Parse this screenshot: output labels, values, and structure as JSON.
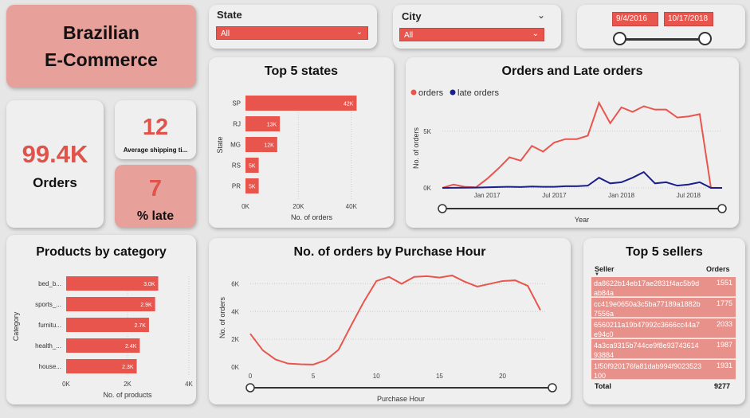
{
  "title": {
    "line1": "Brazilian",
    "line2": "E-Commerce"
  },
  "kpis": {
    "orders_value": "99.4K",
    "orders_label": "Orders",
    "shipping_value": "12",
    "shipping_label": "Average shipping ti...",
    "late_value": "7",
    "late_label": "% late"
  },
  "slicers": {
    "state_label": "State",
    "state_value": "All",
    "city_label": "City",
    "city_value": "All",
    "date_start": "9/4/2016",
    "date_end": "10/17/2018"
  },
  "colors": {
    "accent": "#e8554d",
    "late": "#1a1f8c",
    "pink": "#e8a09b"
  },
  "chart_data": [
    {
      "type": "bar",
      "title": "Top 5 states",
      "xlabel": "No. of orders",
      "ylabel": "State",
      "categories": [
        "SP",
        "RJ",
        "MG",
        "RS",
        "PR"
      ],
      "values": [
        42000,
        13000,
        12000,
        5000,
        5000
      ],
      "data_labels": [
        "42K",
        "13K",
        "12K",
        "5K",
        "5K"
      ],
      "xticks": [
        "0K",
        "20K",
        "40K"
      ],
      "xlim": [
        0,
        50000
      ]
    },
    {
      "type": "line",
      "title": "Orders and Late orders",
      "xlabel": "Year",
      "ylabel": "No. of orders",
      "legend": [
        "orders",
        "late orders"
      ],
      "x": [
        "2016-09",
        "2016-10",
        "2016-11",
        "2016-12",
        "2017-01",
        "2017-02",
        "2017-03",
        "2017-04",
        "2017-05",
        "2017-06",
        "2017-07",
        "2017-08",
        "2017-09",
        "2017-10",
        "2017-11",
        "2017-12",
        "2018-01",
        "2018-02",
        "2018-03",
        "2018-04",
        "2018-05",
        "2018-06",
        "2018-07",
        "2018-08",
        "2018-09",
        "2018-10"
      ],
      "series": [
        {
          "name": "orders",
          "values": [
            0,
            300,
            100,
            50,
            800,
            1700,
            2700,
            2400,
            3700,
            3200,
            4000,
            4300,
            4300,
            4600,
            7500,
            5700,
            7100,
            6700,
            7200,
            6900,
            6900,
            6200,
            6300,
            6500,
            16,
            4
          ]
        },
        {
          "name": "late orders",
          "values": [
            0,
            10,
            20,
            30,
            50,
            80,
            100,
            80,
            120,
            100,
            100,
            150,
            150,
            200,
            900,
            400,
            500,
            900,
            1400,
            400,
            500,
            200,
            300,
            500,
            0,
            0
          ]
        }
      ],
      "xticks": [
        "Jan 2017",
        "Jul 2017",
        "Jan 2018",
        "Jul 2018"
      ],
      "yticks": [
        "0K",
        "5K"
      ],
      "ylim": [
        0,
        8000
      ]
    },
    {
      "type": "bar",
      "title": "Products by category",
      "xlabel": "No. of products",
      "ylabel": "Category",
      "categories": [
        "bed_b...",
        "sports_...",
        "furnitu...",
        "health_...",
        "house..."
      ],
      "values": [
        3000,
        2900,
        2700,
        2400,
        2300
      ],
      "data_labels": [
        "3.0K",
        "2.9K",
        "2.7K",
        "2.4K",
        "2.3K"
      ],
      "xticks": [
        "0K",
        "2K",
        "4K"
      ],
      "xlim": [
        0,
        4000
      ]
    },
    {
      "type": "line",
      "title": "No. of orders by Purchase Hour",
      "xlabel": "Purchase Hour",
      "ylabel": "No. of orders",
      "x": [
        0,
        1,
        2,
        3,
        4,
        5,
        6,
        7,
        8,
        9,
        10,
        11,
        12,
        13,
        14,
        15,
        16,
        17,
        18,
        19,
        20,
        21,
        22,
        23
      ],
      "series": [
        {
          "name": "",
          "values": [
            2400,
            1200,
            550,
            250,
            200,
            180,
            500,
            1250,
            3000,
            4700,
            6200,
            6500,
            6000,
            6500,
            6550,
            6450,
            6600,
            6150,
            5800,
            6000,
            6200,
            6250,
            5850,
            4100
          ]
        }
      ],
      "xticks": [
        "0",
        "5",
        "10",
        "15",
        "20"
      ],
      "yticks": [
        "0K",
        "2K",
        "4K",
        "6K"
      ],
      "xlim": [
        0,
        23
      ],
      "ylim": [
        0,
        7000
      ]
    }
  ],
  "sellers": {
    "title": "Top 5 sellers",
    "col_seller": "Seller",
    "col_orders": "Orders",
    "rows": [
      {
        "seller": "da8622b14eb17ae2831f4ac5b9dab84a",
        "orders": "1551"
      },
      {
        "seller": "cc419e0650a3c5ba77189a1882b7556a",
        "orders": "1775"
      },
      {
        "seller": "6560211a19b47992c3666cc44a7e94c0",
        "orders": "2033"
      },
      {
        "seller": "4a3ca9315b744ce9f8e9374361493884",
        "orders": "1987"
      },
      {
        "seller": "1f50f920176fa81dab994f9023523100",
        "orders": "1931"
      }
    ],
    "total_label": "Total",
    "total_value": "9277"
  }
}
